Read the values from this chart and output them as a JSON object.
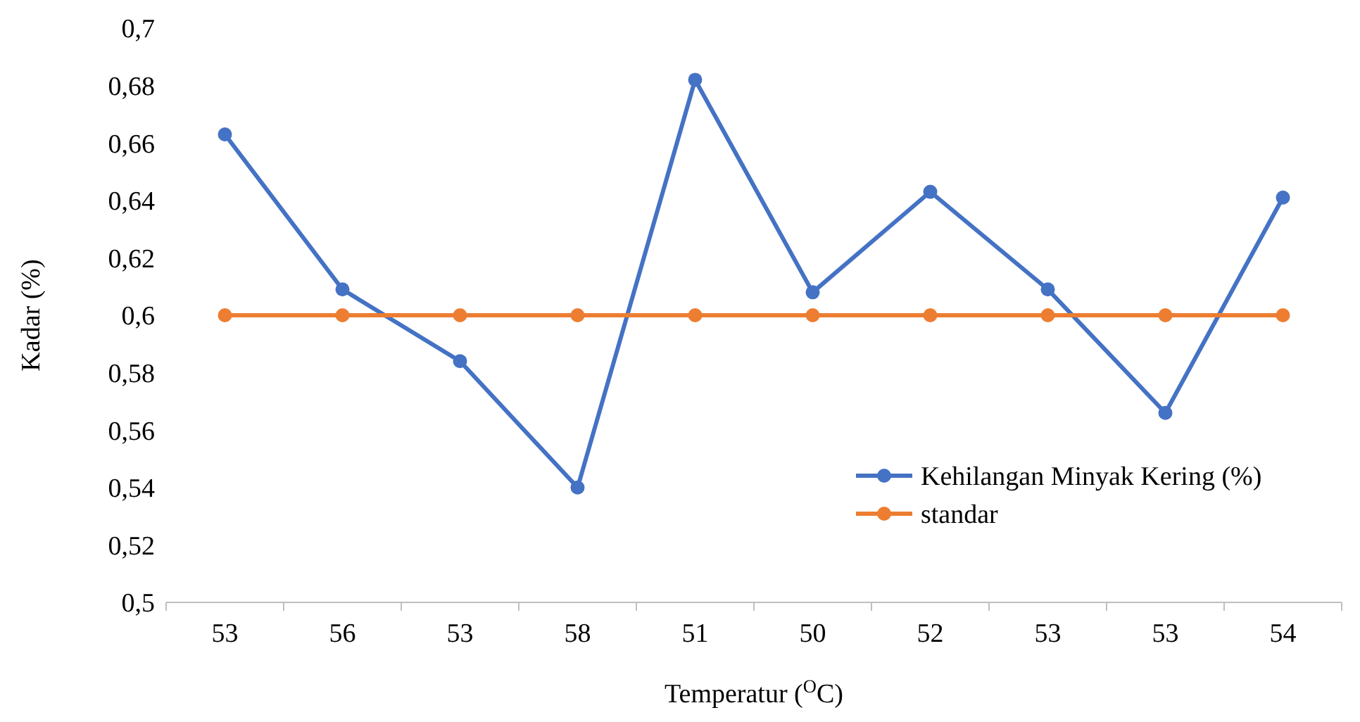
{
  "chart_data": {
    "type": "line",
    "xlabel": "Temperatur ($^{O}$C)",
    "ylabel": "Kadar (%)",
    "categories": [
      "53",
      "56",
      "53",
      "58",
      "51",
      "50",
      "52",
      "53",
      "53",
      "54"
    ],
    "series": [
      {
        "name": "Kehilangan Minyak Kering (%)",
        "color": "#4472c4",
        "values": [
          0.663,
          0.609,
          0.584,
          0.54,
          0.682,
          0.608,
          0.643,
          0.609,
          0.566,
          0.641
        ]
      },
      {
        "name": "standar",
        "color": "#ed7d31",
        "values": [
          0.6,
          0.6,
          0.6,
          0.6,
          0.6,
          0.6,
          0.6,
          0.6,
          0.6,
          0.6
        ]
      }
    ],
    "ylim": [
      0.5,
      0.7
    ],
    "yticks": [
      {
        "value": 0.5,
        "label": "0,5"
      },
      {
        "value": 0.52,
        "label": "0,52"
      },
      {
        "value": 0.54,
        "label": "0,54"
      },
      {
        "value": 0.56,
        "label": "0,56"
      },
      {
        "value": 0.58,
        "label": "0,58"
      },
      {
        "value": 0.6,
        "label": "0,6"
      },
      {
        "value": 0.62,
        "label": "0,62"
      },
      {
        "value": 0.64,
        "label": "0,64"
      },
      {
        "value": 0.66,
        "label": "0,66"
      },
      {
        "value": 0.68,
        "label": "0,68"
      },
      {
        "value": 0.7,
        "label": "0,7"
      }
    ],
    "grid": false,
    "legend": "right",
    "marker": "circle",
    "line_style": "solid"
  }
}
